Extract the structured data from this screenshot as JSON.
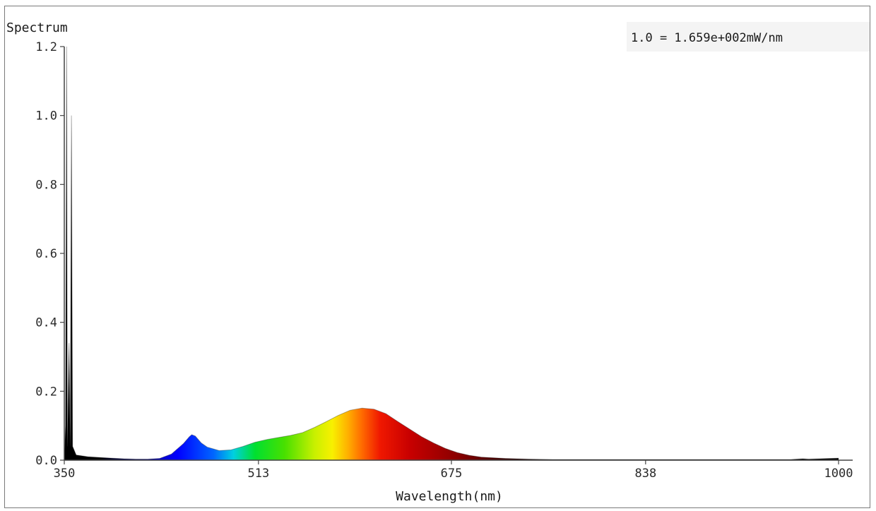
{
  "chart_data": {
    "type": "area",
    "title": "Spectrum",
    "scale_note": "1.0 = 1.659e+002mW/nm",
    "xlabel": "Wavelength(nm)",
    "ylabel": "",
    "xlim": [
      350,
      1000
    ],
    "ylim": [
      0,
      1.2
    ],
    "x_ticks": [
      350,
      513,
      675,
      838,
      1000
    ],
    "y_ticks": [
      "0.0",
      "0.2",
      "0.4",
      "0.6",
      "0.8",
      "1.0",
      "1.2"
    ],
    "grid": false,
    "fill": "visible-spectrum colors",
    "series": [
      {
        "values": [
          [
            350,
            0.0
          ],
          [
            351,
            0.1
          ],
          [
            352,
            1.2
          ],
          [
            352.6,
            0.04
          ],
          [
            354,
            0.34
          ],
          [
            355,
            0.04
          ],
          [
            356,
            1.0
          ],
          [
            357,
            0.04
          ],
          [
            360,
            0.015
          ],
          [
            370,
            0.01
          ],
          [
            380,
            0.008
          ],
          [
            390,
            0.006
          ],
          [
            400,
            0.004
          ],
          [
            410,
            0.003
          ],
          [
            420,
            0.003
          ],
          [
            430,
            0.005
          ],
          [
            440,
            0.018
          ],
          [
            450,
            0.048
          ],
          [
            455,
            0.068
          ],
          [
            457,
            0.074
          ],
          [
            460,
            0.07
          ],
          [
            465,
            0.05
          ],
          [
            470,
            0.038
          ],
          [
            480,
            0.028
          ],
          [
            490,
            0.03
          ],
          [
            500,
            0.04
          ],
          [
            510,
            0.052
          ],
          [
            520,
            0.06
          ],
          [
            530,
            0.066
          ],
          [
            540,
            0.072
          ],
          [
            550,
            0.08
          ],
          [
            560,
            0.095
          ],
          [
            570,
            0.112
          ],
          [
            580,
            0.13
          ],
          [
            590,
            0.145
          ],
          [
            600,
            0.151
          ],
          [
            610,
            0.148
          ],
          [
            620,
            0.135
          ],
          [
            630,
            0.112
          ],
          [
            640,
            0.09
          ],
          [
            650,
            0.068
          ],
          [
            660,
            0.05
          ],
          [
            670,
            0.034
          ],
          [
            680,
            0.022
          ],
          [
            690,
            0.014
          ],
          [
            700,
            0.009
          ],
          [
            720,
            0.005
          ],
          [
            740,
            0.003
          ],
          [
            760,
            0.002
          ],
          [
            800,
            0.002
          ],
          [
            850,
            0.002
          ],
          [
            900,
            0.002
          ],
          [
            960,
            0.002
          ],
          [
            970,
            0.004
          ],
          [
            975,
            0.003
          ],
          [
            1000,
            0.006
          ]
        ]
      }
    ]
  }
}
